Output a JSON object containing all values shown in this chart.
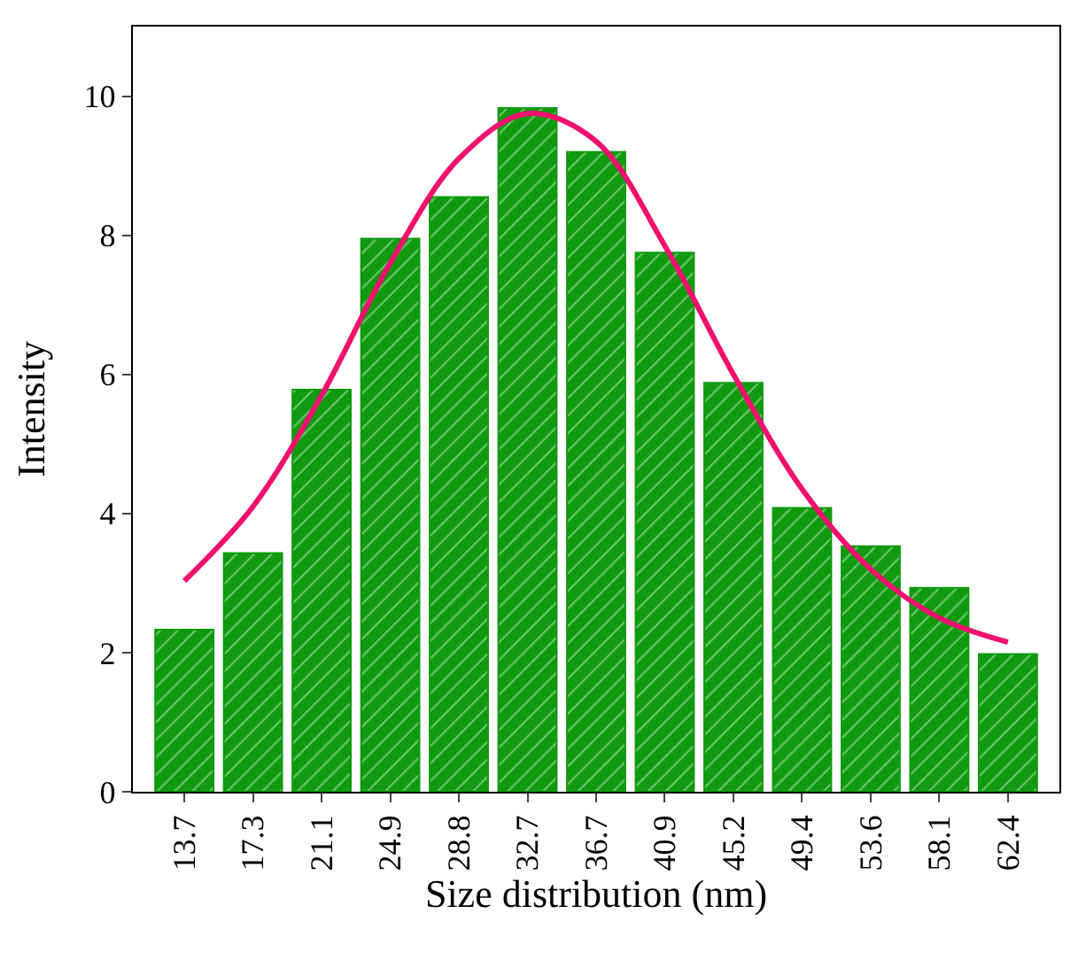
{
  "chart_data": {
    "type": "bar",
    "xlabel": "Size distribution (nm)",
    "ylabel": "Intensity",
    "categories": [
      "13.7",
      "17.3",
      "21.1",
      "24.9",
      "28.8",
      "32.7",
      "36.7",
      "40.9",
      "45.2",
      "49.4",
      "53.6",
      "58.1",
      "62.4"
    ],
    "series": [
      {
        "color": "#109a10",
        "values": [
          2.33,
          3.43,
          5.78,
          7.95,
          8.55,
          9.83,
          9.2,
          7.75,
          5.88,
          4.08,
          3.53,
          2.93,
          1.98
        ]
      },
      {
        "type": "line",
        "color": "#f0106e",
        "x": [
          "13.7",
          "17.3",
          "21.1",
          "24.9",
          "28.8",
          "32.7",
          "36.7",
          "40.9",
          "45.2",
          "49.4",
          "53.6",
          "58.1",
          "62.4"
        ],
        "values": [
          3.03,
          4.1,
          5.7,
          7.6,
          9.1,
          9.75,
          9.35,
          7.85,
          6.0,
          4.35,
          3.2,
          2.5,
          2.15
        ]
      }
    ],
    "ylim": [
      0,
      11
    ],
    "yticks": [
      0,
      2,
      4,
      6,
      8,
      10
    ]
  }
}
